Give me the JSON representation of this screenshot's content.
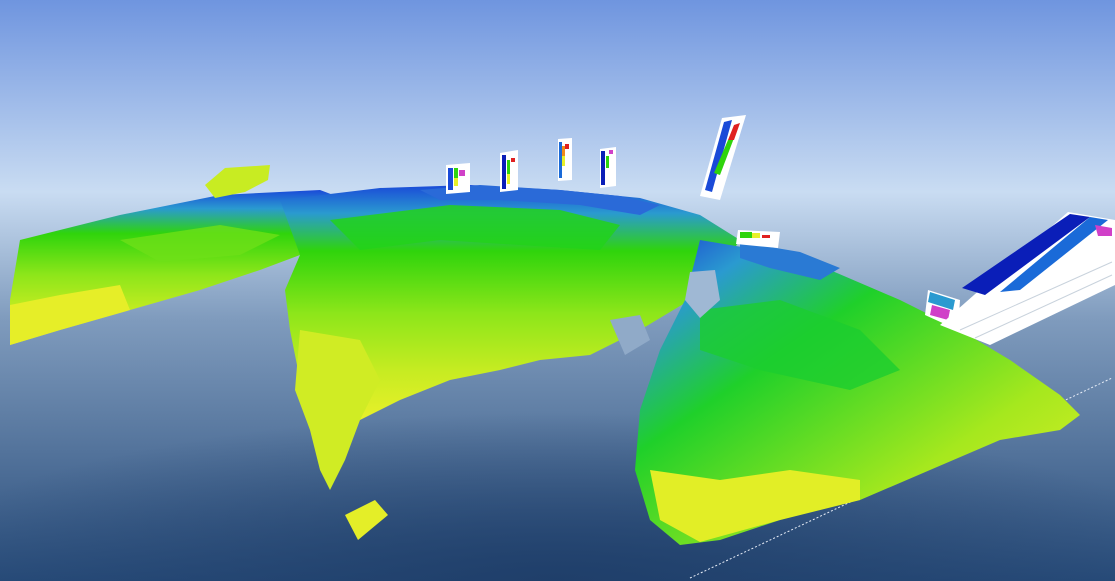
{
  "scene": {
    "type": "3d-voxel-surface-view",
    "colormap": [
      "#e8f02a",
      "#c8ec22",
      "#8ee61a",
      "#2fd40c",
      "#08c83e",
      "#2a9ad0",
      "#1a4ad8",
      "#0a1eb8"
    ],
    "sky_colors": {
      "top": "#6f95df",
      "horizon": "#c9dcf2",
      "floor_mid": "#7f9bbd",
      "floor_dark": "#284c7a"
    },
    "well_log_count": 8,
    "well_log_colors": [
      "#0a1eb8",
      "#1a6ad8",
      "#2fd40c",
      "#e8f02a",
      "#f08a1a",
      "#e02020",
      "#d040c8"
    ],
    "grid_line_color": "#e8eef8"
  }
}
